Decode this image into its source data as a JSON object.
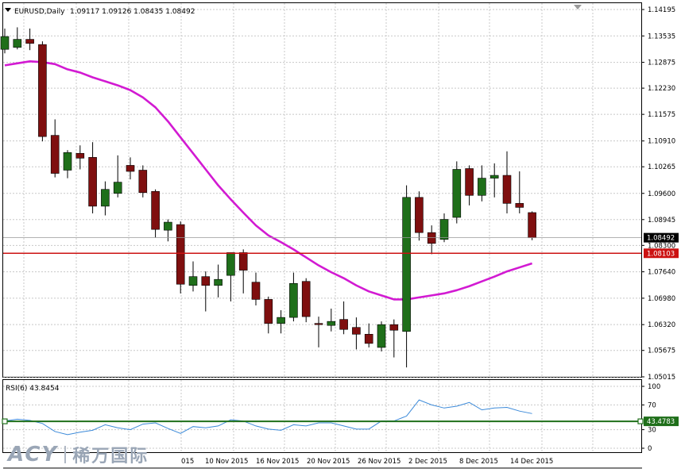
{
  "window": {
    "symbol": "EURUSD,Daily",
    "ohlc_text": "1.09117 1.09126 1.08435 1.08492",
    "menu_arrow_icon": "triangle-down-icon"
  },
  "colors": {
    "bull": "#1f6f1a",
    "bear": "#7f0f0f",
    "ma": "#d21ad2",
    "support_line": "#cc1111",
    "price_line": "#999999",
    "rsi_line": "#3c8ad9",
    "rsi_level": "#1f6f1a",
    "grid": "#c8c8c8"
  },
  "watermark": {
    "brand": "ACY",
    "cn_name": "稀万国际"
  },
  "chart_data": [
    {
      "type": "candlestick",
      "title": "EURUSD,Daily",
      "y_ticks": [
        "1.14195",
        "1.13535",
        "1.12875",
        "1.12230",
        "1.11575",
        "1.10910",
        "1.10265",
        "1.09600",
        "1.08945",
        "1.08300",
        "1.07640",
        "1.06980",
        "1.06320",
        "1.05675",
        "1.05015"
      ],
      "ylim": [
        1.0495,
        1.143
      ],
      "x_labels": [
        "10 Nov 2015",
        "16 Nov 2015",
        "20 Nov 2015",
        "26 Nov 2015",
        "2 Dec 2015",
        "8 Dec 2015",
        "14 Dec 2015"
      ],
      "x_label_cut": "015",
      "current_price_label": "1.08492",
      "level_label": "1.08103",
      "level_value": 1.08103,
      "current_price": 1.08492,
      "candles": [
        {
          "o": 1.132,
          "h": 1.1372,
          "l": 1.131,
          "c": 1.1352
        },
        {
          "o": 1.1325,
          "h": 1.1375,
          "l": 1.132,
          "c": 1.1345
        },
        {
          "o": 1.1345,
          "h": 1.1372,
          "l": 1.1318,
          "c": 1.1335
        },
        {
          "o": 1.1332,
          "h": 1.134,
          "l": 1.109,
          "c": 1.1102
        },
        {
          "o": 1.1105,
          "h": 1.1145,
          "l": 1.1,
          "c": 1.101
        },
        {
          "o": 1.1018,
          "h": 1.1068,
          "l": 1.0998,
          "c": 1.1062
        },
        {
          "o": 1.106,
          "h": 1.108,
          "l": 1.102,
          "c": 1.1048
        },
        {
          "o": 1.105,
          "h": 1.1088,
          "l": 1.091,
          "c": 1.0928
        },
        {
          "o": 1.0928,
          "h": 1.099,
          "l": 1.0905,
          "c": 1.097
        },
        {
          "o": 1.096,
          "h": 1.1055,
          "l": 1.095,
          "c": 1.0988
        },
        {
          "o": 1.103,
          "h": 1.105,
          "l": 1.0995,
          "c": 1.1015
        },
        {
          "o": 1.1018,
          "h": 1.103,
          "l": 1.095,
          "c": 1.0962
        },
        {
          "o": 1.0965,
          "h": 1.097,
          "l": 1.085,
          "c": 1.087
        },
        {
          "o": 1.0868,
          "h": 1.0895,
          "l": 1.084,
          "c": 1.0888
        },
        {
          "o": 1.0882,
          "h": 1.089,
          "l": 1.071,
          "c": 1.0733
        },
        {
          "o": 1.073,
          "h": 1.079,
          "l": 1.0715,
          "c": 1.0752
        },
        {
          "o": 1.0752,
          "h": 1.0765,
          "l": 1.0665,
          "c": 1.073
        },
        {
          "o": 1.073,
          "h": 1.0782,
          "l": 1.07,
          "c": 1.0745
        },
        {
          "o": 1.0755,
          "h": 1.081,
          "l": 1.069,
          "c": 1.0812
        },
        {
          "o": 1.0812,
          "h": 1.082,
          "l": 1.071,
          "c": 1.0768
        },
        {
          "o": 1.0738,
          "h": 1.0762,
          "l": 1.068,
          "c": 1.0695
        },
        {
          "o": 1.0695,
          "h": 1.0702,
          "l": 1.061,
          "c": 1.0635
        },
        {
          "o": 1.0635,
          "h": 1.0668,
          "l": 1.061,
          "c": 1.065
        },
        {
          "o": 1.065,
          "h": 1.0762,
          "l": 1.064,
          "c": 1.0735
        },
        {
          "o": 1.074,
          "h": 1.0748,
          "l": 1.0638,
          "c": 1.0652
        },
        {
          "o": 1.0635,
          "h": 1.0652,
          "l": 1.0575,
          "c": 1.0632
        },
        {
          "o": 1.063,
          "h": 1.0672,
          "l": 1.0615,
          "c": 1.064
        },
        {
          "o": 1.0645,
          "h": 1.069,
          "l": 1.0608,
          "c": 1.062
        },
        {
          "o": 1.0625,
          "h": 1.065,
          "l": 1.057,
          "c": 1.0608
        },
        {
          "o": 1.0608,
          "h": 1.0635,
          "l": 1.0575,
          "c": 1.0585
        },
        {
          "o": 1.0575,
          "h": 1.064,
          "l": 1.0565,
          "c": 1.0632
        },
        {
          "o": 1.0632,
          "h": 1.0645,
          "l": 1.055,
          "c": 1.0618
        },
        {
          "o": 1.0615,
          "h": 1.098,
          "l": 1.0525,
          "c": 1.095
        },
        {
          "o": 1.095,
          "h": 1.0965,
          "l": 1.0842,
          "c": 1.0862
        },
        {
          "o": 1.0862,
          "h": 1.088,
          "l": 1.0808,
          "c": 1.0835
        },
        {
          "o": 1.0845,
          "h": 1.091,
          "l": 1.0838,
          "c": 1.0895
        },
        {
          "o": 1.09,
          "h": 1.104,
          "l": 1.0885,
          "c": 1.102
        },
        {
          "o": 1.1022,
          "h": 1.103,
          "l": 1.093,
          "c": 1.0955
        },
        {
          "o": 1.0955,
          "h": 1.103,
          "l": 1.094,
          "c": 1.0998
        },
        {
          "o": 1.0998,
          "h": 1.1035,
          "l": 1.095,
          "c": 1.1005
        },
        {
          "o": 1.1005,
          "h": 1.1065,
          "l": 1.091,
          "c": 1.0935
        },
        {
          "o": 1.0935,
          "h": 1.1015,
          "l": 1.091,
          "c": 1.0925
        },
        {
          "o": 1.0912,
          "h": 1.0915,
          "l": 1.0843,
          "c": 1.0849
        }
      ],
      "ma": [
        1.128,
        1.1285,
        1.129,
        1.1288,
        1.1283,
        1.127,
        1.1262,
        1.125,
        1.124,
        1.123,
        1.1218,
        1.12,
        1.1175,
        1.114,
        1.11,
        1.106,
        1.102,
        1.098,
        1.0945,
        1.0912,
        1.088,
        1.0855,
        1.0838,
        1.082,
        1.08,
        1.078,
        1.0763,
        1.0748,
        1.073,
        1.0715,
        1.0705,
        1.0695,
        1.0695,
        1.07,
        1.0705,
        1.071,
        1.0718,
        1.0728,
        1.074,
        1.0752,
        1.0765,
        1.0775,
        1.0785
      ]
    },
    {
      "type": "line",
      "title": "RSI(6) 43.8454",
      "ylim": [
        0,
        100
      ],
      "y_ticks": [
        "100",
        "70",
        "30",
        "0"
      ],
      "level_label": "43.4783",
      "level_value": 43.4783,
      "values": [
        44,
        47,
        45,
        40,
        27,
        22,
        26,
        29,
        38,
        33,
        30,
        39,
        41,
        32,
        24,
        35,
        33,
        36,
        46,
        44,
        36,
        31,
        29,
        38,
        36,
        41,
        41,
        36,
        31,
        31,
        44,
        44,
        52,
        78,
        70,
        65,
        68,
        74,
        62,
        65,
        66,
        60,
        56
      ]
    }
  ]
}
